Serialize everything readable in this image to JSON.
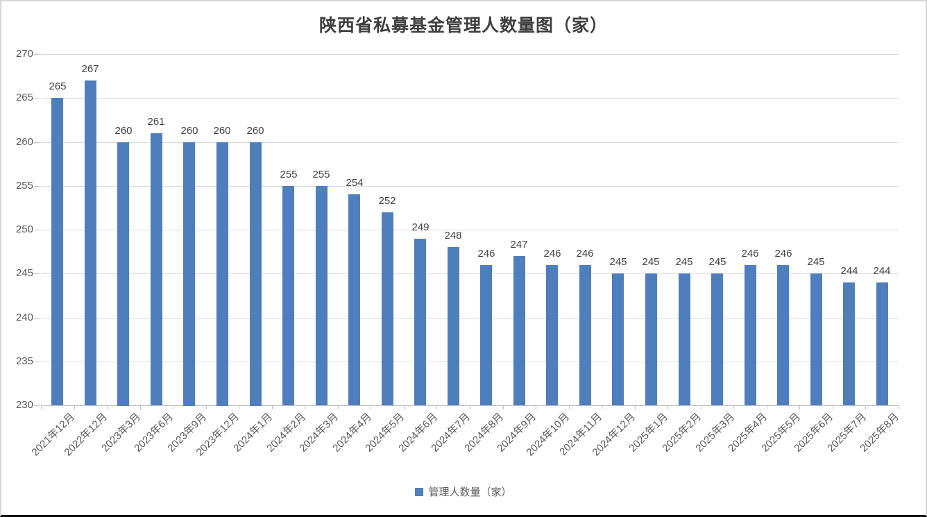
{
  "chart": {
    "title": "陕西省私募基金管理人数量图（家）",
    "legend_label": "管理人数量（家）"
  },
  "chart_data": {
    "type": "bar",
    "title": "陕西省私募基金管理人数量图（家）",
    "categories": [
      "2021年12月",
      "2022年12月",
      "2023年3月",
      "2023年6月",
      "2023年9月",
      "2023年12月",
      "2024年1月",
      "2024年2月",
      "2024年3月",
      "2024年4月",
      "2024年5月",
      "2024年6月",
      "2024年7月",
      "2024年8月",
      "2024年9月",
      "2024年10月",
      "2024年11月",
      "2024年12月",
      "2025年1月",
      "2025年2月",
      "2025年3月",
      "2025年4月",
      "2025年5月",
      "2025年6月",
      "2025年7月",
      "2025年8月"
    ],
    "series": [
      {
        "name": "管理人数量（家）",
        "values": [
          265,
          267,
          260,
          261,
          260,
          260,
          260,
          255,
          255,
          254,
          252,
          249,
          248,
          246,
          247,
          246,
          246,
          245,
          245,
          245,
          245,
          246,
          246,
          245,
          244,
          244
        ]
      }
    ],
    "data_labels": true,
    "ylim": [
      230,
      270
    ],
    "ytick_step": 5,
    "yticks": [
      230,
      235,
      240,
      245,
      250,
      255,
      260,
      265,
      270
    ],
    "grid": true,
    "legend_position": "bottom",
    "xlabel": "",
    "ylabel": "",
    "bar_color": "#4e7ebc",
    "gridline_color": "#d9d9d9",
    "axis_line_color": "#bfbfbf"
  }
}
